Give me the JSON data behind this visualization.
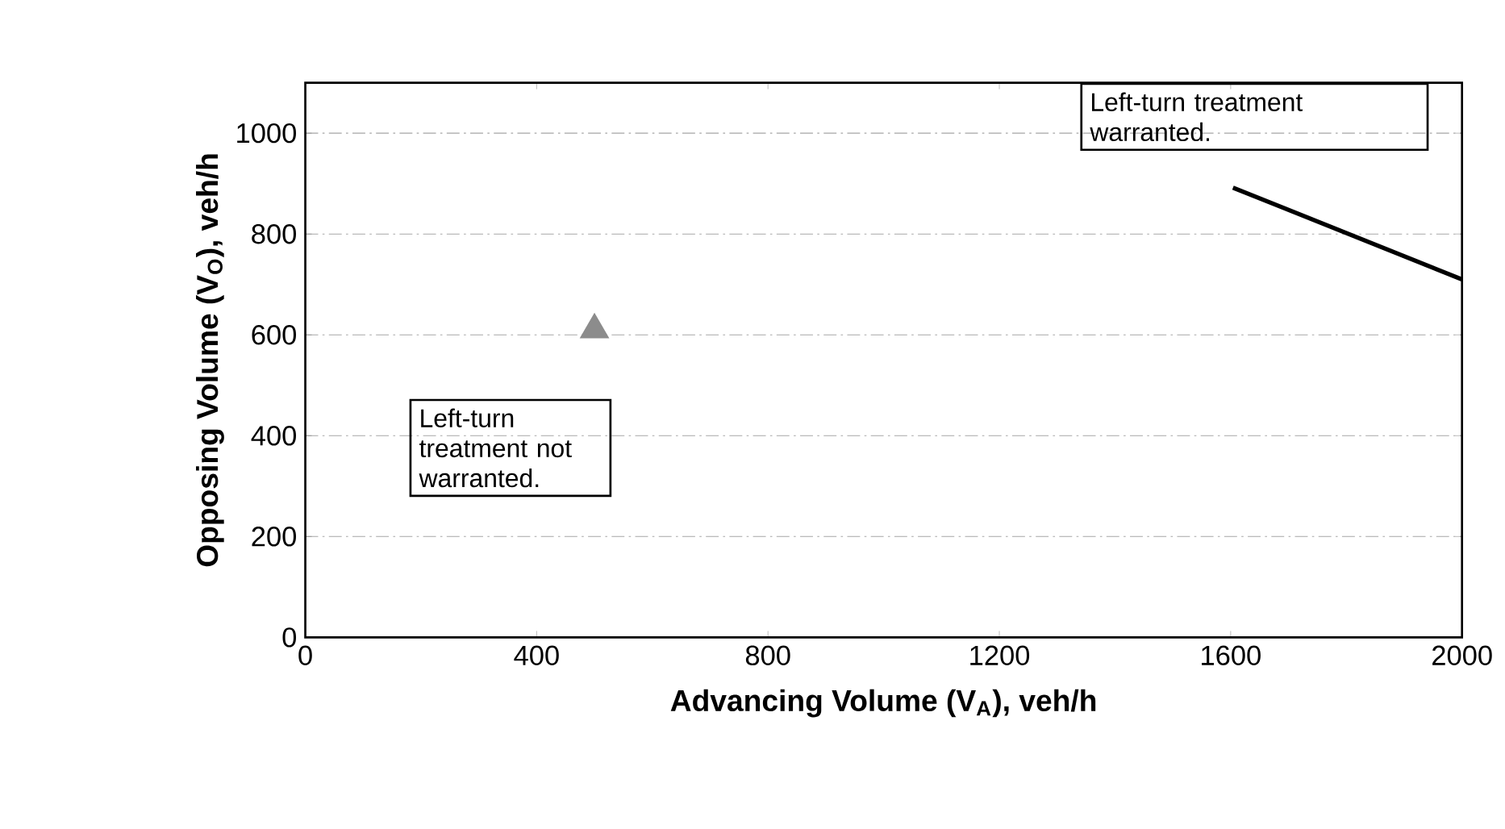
{
  "chart_data": {
    "type": "line",
    "xlabel": "Advancing Volume (V$_{A}$), veh/h",
    "ylabel": "Opposing Volume (V$_{O}$), veh/h",
    "xlim": [
      0,
      2000
    ],
    "ylim": [
      0,
      1100
    ],
    "xticks": [
      0,
      400,
      800,
      1200,
      1600,
      2000
    ],
    "yticks": [
      0,
      200,
      400,
      600,
      800,
      1000
    ],
    "grid": "y",
    "series": [
      {
        "type": "line",
        "color": "#000000",
        "marker": "none",
        "x": [
          1604,
          2000
        ],
        "values": [
          892,
          710
        ]
      },
      {
        "type": "scatter",
        "color": "#8c8c8c",
        "marker": "triangle",
        "x": [
          500
        ],
        "values": [
          610
        ]
      }
    ],
    "annotations": [
      "Left-turn treatment warranted.",
      "Left-turn treatment not warranted."
    ]
  }
}
